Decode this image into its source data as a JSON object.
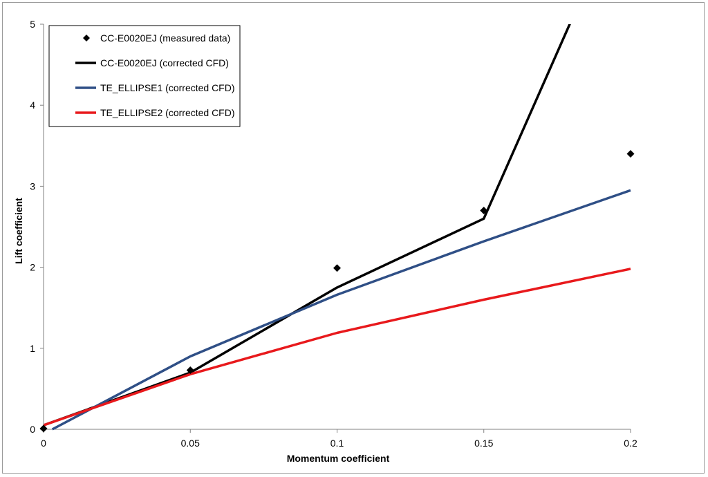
{
  "chart_data": {
    "type": "line",
    "title": "",
    "xlabel": "Momentum coefficient",
    "ylabel": "Lift coefficient",
    "xlim": [
      0,
      0.2
    ],
    "ylim": [
      0,
      5
    ],
    "x_ticks": [
      0,
      0.05,
      0.1,
      0.15,
      0.2
    ],
    "x_tick_labels": [
      "0",
      "0.05",
      "0.1",
      "0.15",
      "0.2"
    ],
    "y_ticks": [
      0,
      1,
      2,
      3,
      4,
      5
    ],
    "y_tick_labels": [
      "0",
      "1",
      "2",
      "3",
      "4",
      "5"
    ],
    "grid": false,
    "legend_position": "top-left",
    "series": [
      {
        "name": "CC-E0020EJ (measured data)",
        "kind": "scatter",
        "marker": "diamond",
        "color": "#000000",
        "x": [
          0,
          0.05,
          0.1,
          0.15,
          0.2
        ],
        "y": [
          0.01,
          0.73,
          1.99,
          2.7,
          3.4
        ]
      },
      {
        "name": "CC-E0020EJ (corrected CFD)",
        "kind": "line",
        "color": "#000000",
        "x": [
          0,
          0.05,
          0.1,
          0.15,
          0.2
        ],
        "y": [
          0.05,
          0.7,
          1.75,
          2.6,
          6.7
        ]
      },
      {
        "name": "TE_ELLIPSE1 (corrected CFD)",
        "kind": "line",
        "color": "#2f4f86",
        "x": [
          0.003,
          0.05,
          0.1,
          0.15,
          0.2
        ],
        "y": [
          0.0,
          0.9,
          1.66,
          2.32,
          2.95
        ]
      },
      {
        "name": "TE_ELLIPSE2 (corrected CFD)",
        "kind": "line",
        "color": "#e8191c",
        "x": [
          0,
          0.05,
          0.1,
          0.15,
          0.2
        ],
        "y": [
          0.05,
          0.68,
          1.19,
          1.6,
          1.98
        ]
      }
    ]
  }
}
